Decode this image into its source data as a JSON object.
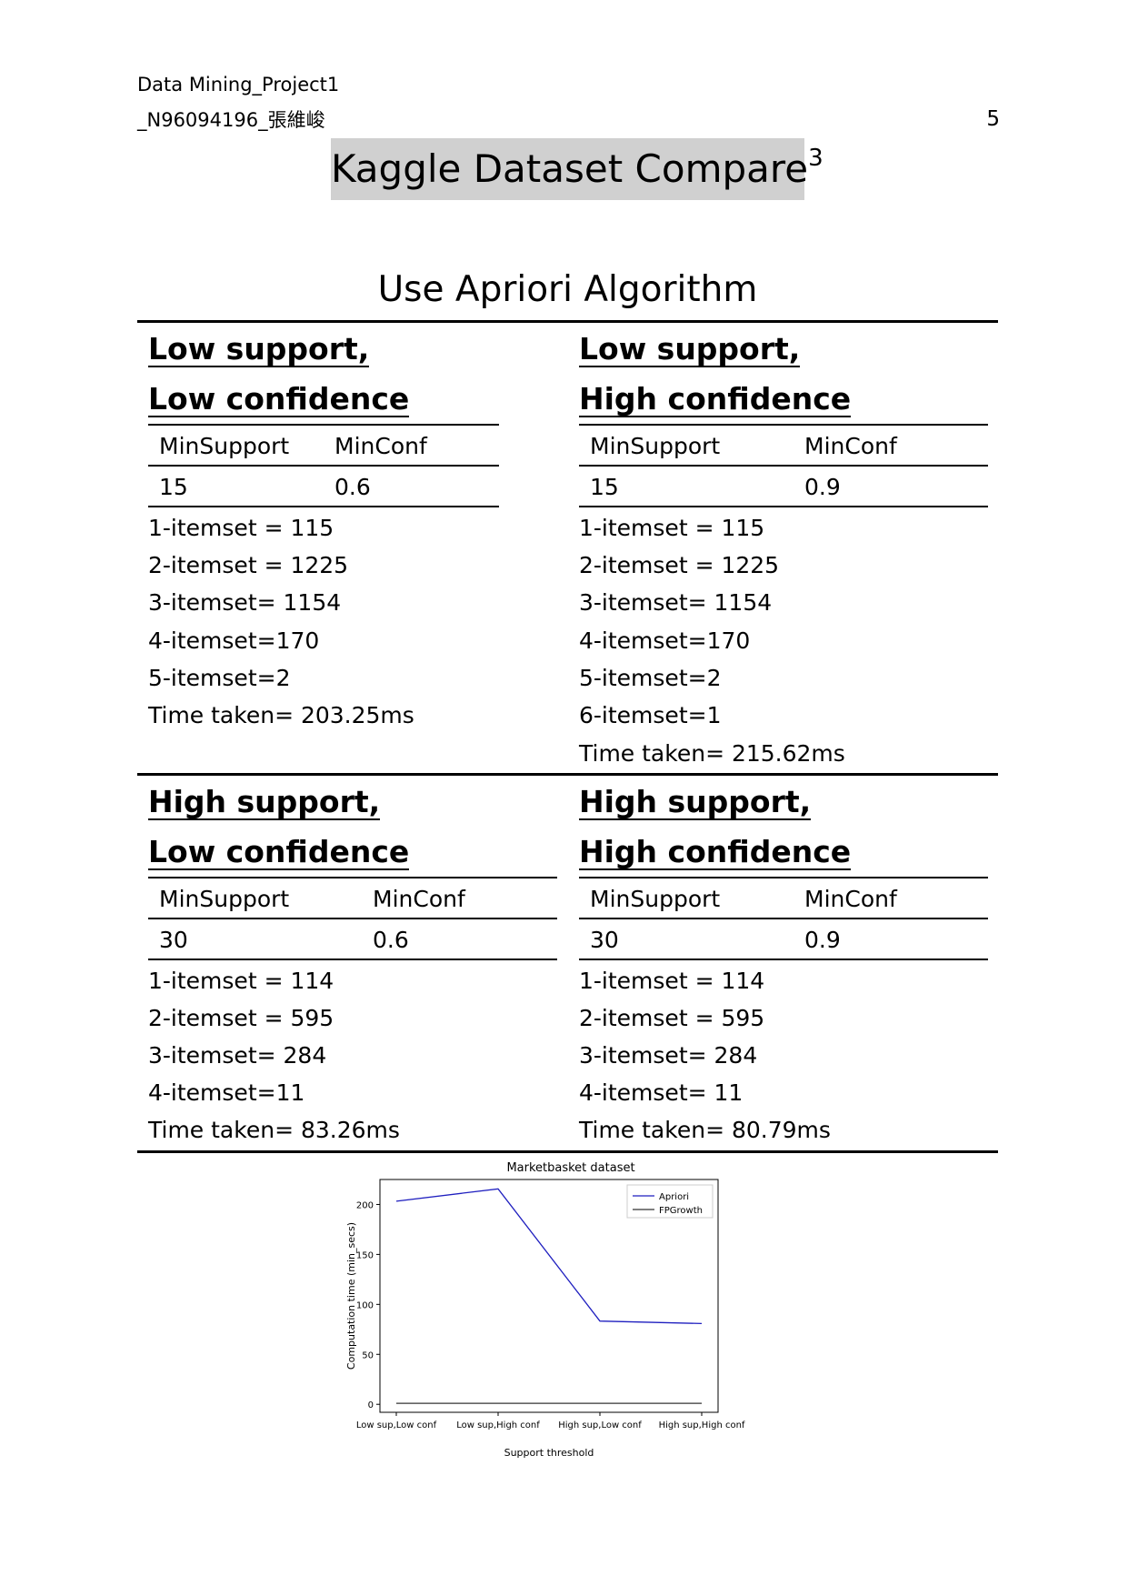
{
  "header": {
    "line1": "Data Mining_Project1",
    "line2": "_N96094196_張維峻",
    "page_number": "5"
  },
  "title": {
    "text": "Kaggle Dataset Compare",
    "superscript": "3"
  },
  "algorithm_title": "Use Apriori Algorithm",
  "quadrants": [
    {
      "title_line1": "Low support,",
      "title_line2": "Low confidence",
      "col1_header": "MinSupport",
      "col2_header": "MinConf",
      "min_support": "15",
      "min_conf": "0.6",
      "lines": [
        "1-itemset = 115",
        "2-itemset = 1225",
        "3-itemset= 1154",
        "4-itemset=170",
        "5-itemset=2",
        "Time taken= 203.25ms"
      ]
    },
    {
      "title_line1": "Low support,",
      "title_line2": "High confidence",
      "col1_header": "MinSupport",
      "col2_header": "MinConf",
      "min_support": "15",
      "min_conf": "0.9",
      "lines": [
        "1-itemset = 115",
        "2-itemset = 1225",
        "3-itemset= 1154",
        "4-itemset=170",
        "5-itemset=2",
        "6-itemset=1",
        "Time taken= 215.62ms"
      ]
    },
    {
      "title_line1": "High support,",
      "title_line2": "Low confidence",
      "col1_header": "MinSupport",
      "col2_header": "MinConf",
      "min_support": "30",
      "min_conf": "0.6",
      "lines": [
        "1-itemset = 114",
        "2-itemset = 595",
        "3-itemset= 284",
        "4-itemset=11",
        "Time taken= 83.26ms"
      ]
    },
    {
      "title_line1": "High support,",
      "title_line2": "High confidence",
      "col1_header": "MinSupport",
      "col2_header": "MinConf",
      "min_support": "30",
      "min_conf": "0.9",
      "lines": [
        "1-itemset = 114",
        "2-itemset = 595",
        "3-itemset= 284",
        "4-itemset= 11",
        "Time taken= 80.79ms"
      ]
    }
  ],
  "chart_data": {
    "type": "line",
    "title": "Marketbasket dataset",
    "xlabel": "Support threshold",
    "ylabel": "Computation time (min_secs)",
    "categories": [
      "Low sup,Low conf",
      "Low sup,High conf",
      "High sup,Low conf",
      "High sup,High conf"
    ],
    "series": [
      {
        "name": "Apriori",
        "values": [
          203.25,
          215.62,
          83.26,
          80.79
        ],
        "color": "#1f1fbf"
      },
      {
        "name": "FPGrowth",
        "values": [
          1,
          1,
          1,
          1
        ],
        "color": "#333333"
      }
    ],
    "ylim": [
      -8,
      225
    ],
    "yticks": [
      0,
      50,
      100,
      150,
      200
    ],
    "legend": "top-right",
    "grid": false
  }
}
